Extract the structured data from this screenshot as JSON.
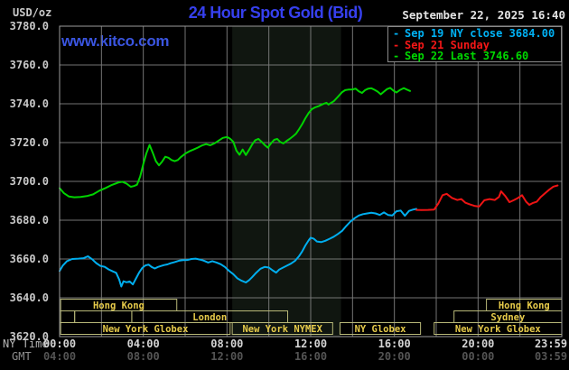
{
  "header": {
    "units_label": "USD/oz",
    "title": "24 Hour Spot Gold (Bid)",
    "datetime": "September 22, 2025 16:40",
    "watermark": "www.kitco.com"
  },
  "legend": {
    "items": [
      {
        "marker": "-",
        "label": "Sep 19 NY close 3684.00",
        "color": "#00b2f5"
      },
      {
        "marker": "-",
        "label": "Sep 21 Sunday",
        "color": "#f31717"
      },
      {
        "marker": "-",
        "label": "Sep 22 Last 3746.60",
        "color": "#00d800"
      }
    ]
  },
  "axes": {
    "ny_row_label": "NY Time",
    "gmt_row_label": "GMT",
    "y_ticks": [
      {
        "value": 3780,
        "label": "3780.0"
      },
      {
        "value": 3760,
        "label": "3760.0"
      },
      {
        "value": 3740,
        "label": "3740.0"
      },
      {
        "value": 3720,
        "label": "3720.0"
      },
      {
        "value": 3700,
        "label": "3700.0"
      },
      {
        "value": 3680,
        "label": "3680.0"
      },
      {
        "value": 3660,
        "label": "3660.0"
      },
      {
        "value": 3640,
        "label": "3640.0"
      },
      {
        "value": 3620,
        "label": "3620.0"
      }
    ],
    "x_ticks": [
      {
        "hour": 0,
        "ny": "00:00",
        "gmt": "04:00"
      },
      {
        "hour": 4,
        "ny": "04:00",
        "gmt": "08:00"
      },
      {
        "hour": 8,
        "ny": "08:00",
        "gmt": "12:00"
      },
      {
        "hour": 12,
        "ny": "12:00",
        "gmt": "16:00"
      },
      {
        "hour": 16,
        "ny": "16:00",
        "gmt": "20:00"
      },
      {
        "hour": 20,
        "ny": "20:00",
        "gmt": "00:00"
      },
      {
        "hour": 23.983,
        "ny": "23:59",
        "gmt": "03:59"
      }
    ]
  },
  "sessions": {
    "rows": [
      {
        "row": 0,
        "from_hour": 0.05,
        "to_hour": 5.6,
        "label": "Hong Kong"
      },
      {
        "row": 0,
        "from_hour": 20.4,
        "to_hour": 24,
        "label": "Hong Kong"
      },
      {
        "row": 1,
        "from_hour": 0.05,
        "to_hour": 0.72,
        "label": ""
      },
      {
        "row": 1,
        "from_hour": 0.72,
        "to_hour": 3.45,
        "label": ""
      },
      {
        "row": 1,
        "from_hour": 3.45,
        "to_hour": 10.9,
        "label": "London"
      },
      {
        "row": 1,
        "from_hour": 18.85,
        "to_hour": 24,
        "label": "Sydney"
      },
      {
        "row": 2,
        "from_hour": 0.05,
        "to_hour": 8.15,
        "label": "New York Globex"
      },
      {
        "row": 2,
        "from_hour": 8.25,
        "to_hour": 13.05,
        "label": "New York NYMEX"
      },
      {
        "row": 2,
        "from_hour": 13.4,
        "to_hour": 17.25,
        "label": "NY Globex"
      },
      {
        "row": 2,
        "from_hour": 17.9,
        "to_hour": 24,
        "label": "New York Globex"
      }
    ]
  },
  "colors": {
    "background": "#000000",
    "grid": "#757575",
    "plot_border": "#9b9b9b",
    "shaded_band": "#101610",
    "title_text": "#3640ee",
    "watermark_text": "#3a55e0",
    "date_text": "#e4e4e4",
    "axis_text": "#c9c9c9",
    "session_border": "#b8b878",
    "session_text": "#e7cb4a",
    "legend_border": "#8a8a8a",
    "series_sep19_cyan": "#00aeef",
    "series_sep21_red": "#ee1414",
    "series_sep22_green": "#00d300"
  },
  "chart_data": {
    "type": "line",
    "title": "24 Hour Spot Gold (Bid)",
    "xlabel": "NY Time",
    "ylabel": "USD/oz",
    "ylim": [
      3620,
      3780
    ],
    "xlim_hours": [
      0,
      24
    ],
    "y_grid_step": 20,
    "x_grid_step_hours": 2,
    "shaded_band": {
      "from_hour": 8.25,
      "to_hour": 13.45
    },
    "series": [
      {
        "name": "Sep 19 NY close",
        "color": "#00aeef",
        "points": [
          [
            0,
            3653.8
          ],
          [
            0.15,
            3656.6
          ],
          [
            0.35,
            3658.9
          ],
          [
            0.6,
            3660.0
          ],
          [
            0.9,
            3660.2
          ],
          [
            1.15,
            3660.4
          ],
          [
            1.35,
            3661.4
          ],
          [
            1.55,
            3659.9
          ],
          [
            1.75,
            3657.9
          ],
          [
            1.95,
            3656.4
          ],
          [
            2.15,
            3656.0
          ],
          [
            2.35,
            3654.6
          ],
          [
            2.55,
            3653.6
          ],
          [
            2.7,
            3652.9
          ],
          [
            2.85,
            3649.4
          ],
          [
            2.95,
            3645.8
          ],
          [
            3.05,
            3648.5
          ],
          [
            3.2,
            3648.0
          ],
          [
            3.35,
            3648.4
          ],
          [
            3.5,
            3646.9
          ],
          [
            3.65,
            3650.0
          ],
          [
            3.8,
            3653.0
          ],
          [
            3.95,
            3655.4
          ],
          [
            4.1,
            3656.7
          ],
          [
            4.25,
            3657.1
          ],
          [
            4.4,
            3655.9
          ],
          [
            4.55,
            3655.1
          ],
          [
            4.7,
            3655.9
          ],
          [
            4.85,
            3656.4
          ],
          [
            5.0,
            3656.9
          ],
          [
            5.15,
            3657.2
          ],
          [
            5.3,
            3657.8
          ],
          [
            5.5,
            3658.4
          ],
          [
            5.7,
            3659.1
          ],
          [
            5.9,
            3659.4
          ],
          [
            6.1,
            3659.5
          ],
          [
            6.3,
            3660.0
          ],
          [
            6.5,
            3660.2
          ],
          [
            6.7,
            3659.7
          ],
          [
            6.9,
            3659.1
          ],
          [
            7.1,
            3658.2
          ],
          [
            7.3,
            3658.9
          ],
          [
            7.5,
            3658.2
          ],
          [
            7.7,
            3657.3
          ],
          [
            7.9,
            3655.9
          ],
          [
            8.1,
            3653.9
          ],
          [
            8.3,
            3652.2
          ],
          [
            8.5,
            3650.0
          ],
          [
            8.7,
            3648.8
          ],
          [
            8.9,
            3647.9
          ],
          [
            9.05,
            3649.0
          ],
          [
            9.2,
            3650.6
          ],
          [
            9.4,
            3653.0
          ],
          [
            9.6,
            3655.0
          ],
          [
            9.8,
            3655.9
          ],
          [
            10.0,
            3655.6
          ],
          [
            10.2,
            3654.0
          ],
          [
            10.35,
            3653.0
          ],
          [
            10.5,
            3654.6
          ],
          [
            10.65,
            3655.4
          ],
          [
            10.85,
            3656.5
          ],
          [
            11.05,
            3657.6
          ],
          [
            11.25,
            3659.0
          ],
          [
            11.45,
            3661.6
          ],
          [
            11.6,
            3664.0
          ],
          [
            11.75,
            3667.0
          ],
          [
            11.9,
            3669.6
          ],
          [
            12.0,
            3671.0
          ],
          [
            12.15,
            3670.4
          ],
          [
            12.3,
            3669.0
          ],
          [
            12.5,
            3668.7
          ],
          [
            12.7,
            3669.4
          ],
          [
            12.9,
            3670.4
          ],
          [
            13.1,
            3671.5
          ],
          [
            13.3,
            3672.9
          ],
          [
            13.5,
            3674.5
          ],
          [
            13.7,
            3677.0
          ],
          [
            13.9,
            3679.3
          ],
          [
            14.1,
            3681.0
          ],
          [
            14.3,
            3682.4
          ],
          [
            14.5,
            3683.1
          ],
          [
            14.7,
            3683.5
          ],
          [
            14.9,
            3683.8
          ],
          [
            15.1,
            3683.5
          ],
          [
            15.3,
            3682.7
          ],
          [
            15.5,
            3684.0
          ],
          [
            15.7,
            3682.7
          ],
          [
            15.9,
            3682.4
          ],
          [
            16.1,
            3684.6
          ],
          [
            16.3,
            3685.0
          ],
          [
            16.5,
            3682.3
          ],
          [
            16.7,
            3684.8
          ],
          [
            16.9,
            3685.5
          ],
          [
            17.05,
            3685.8
          ]
        ]
      },
      {
        "name": "Sep 21 Sunday",
        "color": "#ee1414",
        "points": [
          [
            17.05,
            3685.3
          ],
          [
            17.3,
            3685.2
          ],
          [
            17.6,
            3685.3
          ],
          [
            17.9,
            3685.5
          ],
          [
            18.1,
            3688.6
          ],
          [
            18.3,
            3692.9
          ],
          [
            18.5,
            3693.6
          ],
          [
            18.75,
            3691.5
          ],
          [
            19.0,
            3690.4
          ],
          [
            19.2,
            3690.9
          ],
          [
            19.4,
            3689.0
          ],
          [
            19.6,
            3688.2
          ],
          [
            19.85,
            3687.3
          ],
          [
            20.05,
            3687.0
          ],
          [
            20.3,
            3690.3
          ],
          [
            20.55,
            3690.9
          ],
          [
            20.8,
            3690.4
          ],
          [
            21.0,
            3692.0
          ],
          [
            21.1,
            3694.9
          ],
          [
            21.3,
            3692.4
          ],
          [
            21.5,
            3689.3
          ],
          [
            21.7,
            3690.3
          ],
          [
            21.9,
            3691.4
          ],
          [
            22.1,
            3692.9
          ],
          [
            22.3,
            3689.5
          ],
          [
            22.45,
            3687.9
          ],
          [
            22.6,
            3688.8
          ],
          [
            22.8,
            3689.5
          ],
          [
            23.0,
            3692.0
          ],
          [
            23.2,
            3693.9
          ],
          [
            23.4,
            3695.7
          ],
          [
            23.6,
            3697.3
          ],
          [
            23.8,
            3697.9
          ]
        ]
      },
      {
        "name": "Sep 22 Last",
        "color": "#00d300",
        "points": [
          [
            0,
            3696.5
          ],
          [
            0.2,
            3694.0
          ],
          [
            0.45,
            3692.2
          ],
          [
            0.7,
            3691.8
          ],
          [
            1.0,
            3692.0
          ],
          [
            1.3,
            3692.4
          ],
          [
            1.6,
            3693.3
          ],
          [
            1.9,
            3695.2
          ],
          [
            2.2,
            3696.6
          ],
          [
            2.5,
            3698.2
          ],
          [
            2.8,
            3699.4
          ],
          [
            3.0,
            3699.8
          ],
          [
            3.2,
            3698.9
          ],
          [
            3.4,
            3697.2
          ],
          [
            3.55,
            3697.6
          ],
          [
            3.7,
            3698.3
          ],
          [
            3.85,
            3702.5
          ],
          [
            4.0,
            3709.0
          ],
          [
            4.15,
            3714.5
          ],
          [
            4.3,
            3718.8
          ],
          [
            4.45,
            3714.8
          ],
          [
            4.6,
            3710.4
          ],
          [
            4.75,
            3708.3
          ],
          [
            4.9,
            3710.2
          ],
          [
            5.05,
            3712.7
          ],
          [
            5.2,
            3712.2
          ],
          [
            5.35,
            3711.0
          ],
          [
            5.5,
            3710.4
          ],
          [
            5.65,
            3711.0
          ],
          [
            5.8,
            3712.6
          ],
          [
            6.0,
            3714.3
          ],
          [
            6.2,
            3715.5
          ],
          [
            6.4,
            3716.4
          ],
          [
            6.6,
            3717.4
          ],
          [
            6.8,
            3718.5
          ],
          [
            7.0,
            3719.2
          ],
          [
            7.2,
            3718.6
          ],
          [
            7.4,
            3719.6
          ],
          [
            7.6,
            3721.0
          ],
          [
            7.8,
            3722.4
          ],
          [
            8.0,
            3722.9
          ],
          [
            8.15,
            3722.0
          ],
          [
            8.3,
            3720.4
          ],
          [
            8.45,
            3715.8
          ],
          [
            8.6,
            3713.7
          ],
          [
            8.75,
            3716.4
          ],
          [
            8.9,
            3713.6
          ],
          [
            9.05,
            3716.2
          ],
          [
            9.2,
            3719.0
          ],
          [
            9.35,
            3721.2
          ],
          [
            9.5,
            3721.9
          ],
          [
            9.65,
            3720.4
          ],
          [
            9.8,
            3718.8
          ],
          [
            9.95,
            3717.4
          ],
          [
            10.1,
            3719.6
          ],
          [
            10.25,
            3721.4
          ],
          [
            10.4,
            3721.9
          ],
          [
            10.55,
            3720.3
          ],
          [
            10.7,
            3719.6
          ],
          [
            10.85,
            3720.9
          ],
          [
            11.0,
            3721.9
          ],
          [
            11.15,
            3723.2
          ],
          [
            11.3,
            3724.6
          ],
          [
            11.45,
            3727.0
          ],
          [
            11.6,
            3729.6
          ],
          [
            11.75,
            3732.6
          ],
          [
            11.9,
            3735.2
          ],
          [
            12.05,
            3737.2
          ],
          [
            12.2,
            3738.1
          ],
          [
            12.4,
            3738.9
          ],
          [
            12.6,
            3739.9
          ],
          [
            12.75,
            3740.5
          ],
          [
            12.85,
            3739.6
          ],
          [
            12.95,
            3740.3
          ],
          [
            13.1,
            3741.3
          ],
          [
            13.3,
            3743.6
          ],
          [
            13.5,
            3746.0
          ],
          [
            13.65,
            3747.0
          ],
          [
            13.8,
            3747.3
          ],
          [
            14.0,
            3747.4
          ],
          [
            14.15,
            3747.8
          ],
          [
            14.3,
            3746.4
          ],
          [
            14.45,
            3745.6
          ],
          [
            14.6,
            3747.0
          ],
          [
            14.75,
            3747.8
          ],
          [
            14.9,
            3748.0
          ],
          [
            15.05,
            3747.2
          ],
          [
            15.2,
            3746.3
          ],
          [
            15.35,
            3744.9
          ],
          [
            15.5,
            3746.3
          ],
          [
            15.65,
            3747.6
          ],
          [
            15.8,
            3748.2
          ],
          [
            15.95,
            3746.8
          ],
          [
            16.1,
            3745.8
          ],
          [
            16.25,
            3747.0
          ],
          [
            16.45,
            3748.1
          ],
          [
            16.6,
            3747.3
          ],
          [
            16.75,
            3746.6
          ]
        ]
      }
    ]
  }
}
